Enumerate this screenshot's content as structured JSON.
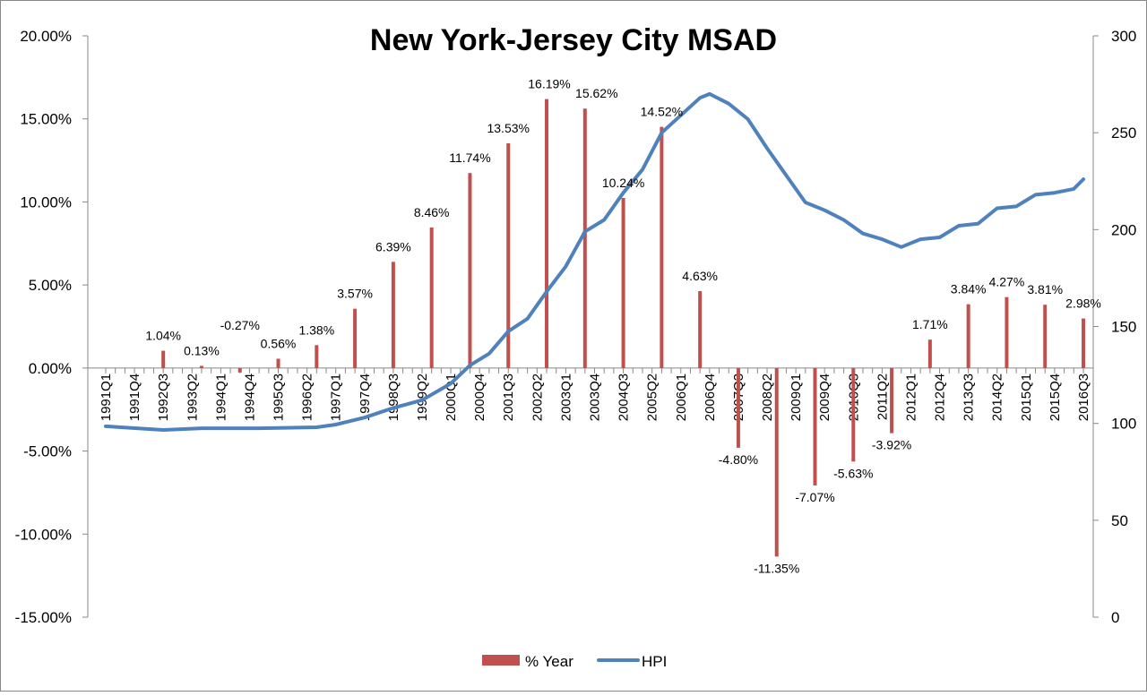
{
  "chart_data": {
    "type": "bar+line",
    "title": "New York-Jersey City MSAD",
    "colors": {
      "bar": "#c0504d",
      "line": "#4f81bd"
    },
    "y_left": {
      "label": "",
      "range": [
        -15,
        20
      ],
      "ticks": [
        "20.00%",
        "15.00%",
        "10.00%",
        "5.00%",
        "0.00%",
        "-5.00%",
        "-10.00%",
        "-15.00%"
      ],
      "tick_values": [
        20,
        15,
        10,
        5,
        0,
        -5,
        -10,
        -15
      ]
    },
    "y_right": {
      "label": "",
      "range": [
        0,
        300
      ],
      "ticks": [
        "300",
        "250",
        "200",
        "150",
        "100",
        "50",
        "0"
      ],
      "tick_values": [
        300,
        250,
        200,
        150,
        100,
        50,
        0
      ]
    },
    "x_start": "1991Q1",
    "x_end": "2016Q3",
    "x_tick_labels": [
      "1991Q1",
      "1991Q4",
      "1992Q3",
      "1993Q2",
      "1994Q1",
      "1994Q4",
      "1995Q3",
      "1996Q2",
      "1997Q1",
      "1997Q4",
      "1998Q3",
      "1999Q2",
      "2000Q1",
      "2000Q4",
      "2001Q3",
      "2002Q2",
      "2003Q1",
      "2003Q4",
      "2004Q3",
      "2005Q2",
      "2006Q1",
      "2006Q4",
      "2007Q3",
      "2008Q2",
      "2009Q1",
      "2009Q4",
      "2010Q3",
      "2011Q2",
      "2012Q1",
      "2012Q4",
      "2013Q3",
      "2014Q2",
      "2015Q1",
      "2015Q4",
      "2016Q3"
    ],
    "legend": {
      "position": "bottom",
      "entries": [
        "% Year",
        "HPI"
      ]
    },
    "series": [
      {
        "name": "% Year",
        "type": "bar",
        "axis": "left",
        "x": [
          "1992Q3",
          "1993Q3",
          "1994Q3",
          "1995Q3",
          "1996Q3",
          "1997Q3",
          "1998Q3",
          "1999Q3",
          "2000Q3",
          "2001Q3",
          "2002Q3",
          "2003Q3",
          "2004Q3",
          "2005Q3",
          "2006Q3",
          "2007Q3",
          "2008Q3",
          "2009Q3",
          "2010Q3",
          "2011Q3",
          "2012Q3",
          "2013Q3",
          "2014Q3",
          "2015Q3",
          "2016Q3"
        ],
        "values": [
          1.04,
          0.13,
          -0.27,
          0.56,
          1.38,
          3.57,
          6.39,
          8.46,
          11.74,
          13.53,
          16.19,
          15.62,
          10.24,
          14.52,
          4.63,
          -4.8,
          -11.35,
          -7.07,
          -5.63,
          -3.92,
          1.71,
          3.84,
          4.27,
          3.81,
          2.98
        ],
        "labels": [
          "1.04%",
          "0.13%",
          "-0.27%",
          "0.56%",
          "1.38%",
          "3.57%",
          "6.39%",
          "8.46%",
          "11.74%",
          "13.53%",
          "16.19%",
          "15.62%",
          "10.24%",
          "14.52%",
          "4.63%",
          "-4.80%",
          "-11.35%",
          "-7.07%",
          "-5.63%",
          "-3.92%",
          "1.71%",
          "3.84%",
          "4.27%",
          "3.81%",
          "2.98%"
        ]
      },
      {
        "name": "HPI",
        "type": "line",
        "axis": "right",
        "x": [
          "1991Q1",
          "1992Q3",
          "1993Q3",
          "1995Q1",
          "1996Q3",
          "1997Q1",
          "1997Q4",
          "1998Q3",
          "1999Q2",
          "2000Q1",
          "2000Q3",
          "2001Q1",
          "2001Q3",
          "2002Q1",
          "2002Q3",
          "2003Q1",
          "2003Q3",
          "2004Q1",
          "2004Q3",
          "2005Q1",
          "2005Q3",
          "2006Q1",
          "2006Q3",
          "2006Q4",
          "2007Q2",
          "2007Q4",
          "2008Q2",
          "2008Q4",
          "2009Q2",
          "2009Q4",
          "2010Q2",
          "2010Q4",
          "2011Q2",
          "2011Q4",
          "2012Q2",
          "2012Q4",
          "2013Q2",
          "2013Q4",
          "2014Q2",
          "2014Q4",
          "2015Q2",
          "2015Q4",
          "2016Q2",
          "2016Q3"
        ],
        "values": [
          98.5,
          96.6,
          97.5,
          97.5,
          98,
          99.4,
          103,
          108,
          112,
          120.6,
          130,
          136,
          147.5,
          154,
          168,
          181,
          199,
          205,
          219,
          231,
          250,
          259,
          268,
          270,
          265,
          257,
          242,
          228,
          214,
          210,
          205,
          198,
          195,
          191,
          195,
          196,
          202,
          203,
          211,
          212,
          218,
          219,
          221,
          226
        ]
      }
    ]
  }
}
